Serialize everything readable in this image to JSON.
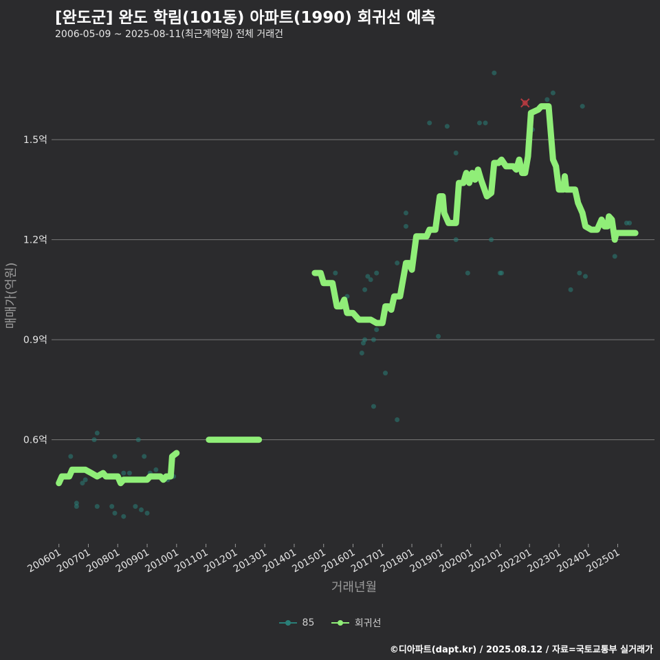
{
  "header": {
    "title": "[완도군] 완도 학림(101동) 아파트(1990) 회귀선 예측",
    "subtitle": "2006-05-09 ~ 2025-08-11(최근계약일) 전체 거래건"
  },
  "caption": "©디아파트(dapt.kr) / 2025.08.12 / 자료=국토교통부 실거래가",
  "legend": {
    "items": [
      {
        "label": "85",
        "color": "#2a7f78"
      },
      {
        "label": "회귀선",
        "color": "#90ee78"
      }
    ]
  },
  "colors": {
    "background": "#2b2b2d",
    "grid": "#7a7a7a",
    "points": "#2a7f78",
    "regression": "#90ee78",
    "highlight": "#b53a40"
  },
  "chart_data": {
    "type": "scatter",
    "xlabel": "거래년월",
    "ylabel": "매매가(억원)",
    "xlim": [
      2005.75,
      2026.25
    ],
    "ylim": [
      0.29,
      1.795
    ],
    "y_ticks": [
      {
        "value": 0.6,
        "label": "0.6억"
      },
      {
        "value": 0.9,
        "label": "0.9억"
      },
      {
        "value": 1.2,
        "label": "1.2억"
      },
      {
        "value": 1.5,
        "label": "1.5억"
      }
    ],
    "x_ticks": [
      {
        "value": 2006,
        "label": "200601"
      },
      {
        "value": 2007,
        "label": "200701"
      },
      {
        "value": 2008,
        "label": "200801"
      },
      {
        "value": 2009,
        "label": "200901"
      },
      {
        "value": 2010,
        "label": "201001"
      },
      {
        "value": 2011,
        "label": "201101"
      },
      {
        "value": 2012,
        "label": "201201"
      },
      {
        "value": 2013,
        "label": "201301"
      },
      {
        "value": 2014,
        "label": "201401"
      },
      {
        "value": 2015,
        "label": "201501"
      },
      {
        "value": 2016,
        "label": "201601"
      },
      {
        "value": 2017,
        "label": "201701"
      },
      {
        "value": 2018,
        "label": "201801"
      },
      {
        "value": 2019,
        "label": "201901"
      },
      {
        "value": 2020,
        "label": "202001"
      },
      {
        "value": 2021,
        "label": "202101"
      },
      {
        "value": 2022,
        "label": "202201"
      },
      {
        "value": 2023,
        "label": "202301"
      },
      {
        "value": 2024,
        "label": "202401"
      },
      {
        "value": 2025,
        "label": "202501"
      }
    ],
    "series": [
      {
        "name": "85",
        "points": [
          [
            2006.4,
            0.55
          ],
          [
            2006.6,
            0.41
          ],
          [
            2006.6,
            0.4
          ],
          [
            2006.8,
            0.47
          ],
          [
            2006.9,
            0.48
          ],
          [
            2007.2,
            0.6
          ],
          [
            2007.3,
            0.62
          ],
          [
            2007.3,
            0.4
          ],
          [
            2007.5,
            0.5
          ],
          [
            2007.8,
            0.4
          ],
          [
            2007.9,
            0.55
          ],
          [
            2007.9,
            0.38
          ],
          [
            2008.2,
            0.5
          ],
          [
            2008.2,
            0.37
          ],
          [
            2008.4,
            0.5
          ],
          [
            2008.6,
            0.4
          ],
          [
            2008.7,
            0.6
          ],
          [
            2008.8,
            0.39
          ],
          [
            2008.9,
            0.55
          ],
          [
            2009.0,
            0.38
          ],
          [
            2009.1,
            0.5
          ],
          [
            2009.3,
            0.51
          ],
          [
            2009.7,
            0.48
          ],
          [
            2009.9,
            0.49
          ],
          [
            2015.4,
            1.1
          ],
          [
            2015.8,
            1.03
          ],
          [
            2016.3,
            0.86
          ],
          [
            2016.35,
            0.89
          ],
          [
            2016.4,
            0.9
          ],
          [
            2016.4,
            1.05
          ],
          [
            2016.5,
            1.09
          ],
          [
            2016.6,
            1.08
          ],
          [
            2016.7,
            0.7
          ],
          [
            2016.7,
            0.9
          ],
          [
            2016.8,
            1.1
          ],
          [
            2016.8,
            0.93
          ],
          [
            2017.1,
            0.8
          ],
          [
            2017.5,
            0.66
          ],
          [
            2017.5,
            1.13
          ],
          [
            2017.8,
            1.28
          ],
          [
            2017.8,
            1.24
          ],
          [
            2018.6,
            1.55
          ],
          [
            2018.9,
            0.91
          ],
          [
            2019.2,
            1.54
          ],
          [
            2019.5,
            1.46
          ],
          [
            2019.5,
            1.2
          ],
          [
            2019.9,
            1.1
          ],
          [
            2020.3,
            1.55
          ],
          [
            2020.5,
            1.55
          ],
          [
            2020.7,
            1.2
          ],
          [
            2020.8,
            1.7
          ],
          [
            2021.0,
            1.1
          ],
          [
            2021.05,
            1.1
          ],
          [
            2022.1,
            1.53
          ],
          [
            2022.6,
            1.62
          ],
          [
            2022.8,
            1.64
          ],
          [
            2023.4,
            1.05
          ],
          [
            2023.7,
            1.1
          ],
          [
            2023.8,
            1.6
          ],
          [
            2023.9,
            1.09
          ],
          [
            2024.9,
            1.15
          ],
          [
            2025.3,
            1.25
          ],
          [
            2025.4,
            1.25
          ]
        ]
      },
      {
        "name": "회귀선",
        "segments": [
          [
            [
              2006.0,
              0.47
            ],
            [
              2006.1,
              0.49
            ],
            [
              2006.35,
              0.49
            ],
            [
              2006.45,
              0.51
            ],
            [
              2006.9,
              0.51
            ],
            [
              2007.1,
              0.5
            ],
            [
              2007.3,
              0.49
            ],
            [
              2007.5,
              0.5
            ],
            [
              2007.6,
              0.49
            ],
            [
              2008.0,
              0.49
            ],
            [
              2008.1,
              0.47
            ],
            [
              2008.2,
              0.48
            ],
            [
              2008.45,
              0.48
            ],
            [
              2008.6,
              0.48
            ],
            [
              2008.7,
              0.48
            ],
            [
              2009.0,
              0.48
            ],
            [
              2009.1,
              0.49
            ],
            [
              2009.3,
              0.49
            ],
            [
              2009.45,
              0.49
            ],
            [
              2009.55,
              0.48
            ],
            [
              2009.65,
              0.49
            ],
            [
              2009.8,
              0.49
            ],
            [
              2009.85,
              0.55
            ],
            [
              2010.0,
              0.56
            ]
          ],
          [
            [
              2011.1,
              0.6
            ],
            [
              2012.8,
              0.6
            ]
          ],
          [
            [
              2014.7,
              1.1
            ],
            [
              2014.9,
              1.1
            ],
            [
              2015.0,
              1.07
            ],
            [
              2015.3,
              1.07
            ],
            [
              2015.45,
              1.0
            ],
            [
              2015.6,
              1.0
            ],
            [
              2015.7,
              1.02
            ],
            [
              2015.8,
              0.98
            ],
            [
              2016.0,
              0.98
            ],
            [
              2016.2,
              0.96
            ],
            [
              2016.6,
              0.96
            ],
            [
              2016.8,
              0.95
            ],
            [
              2017.0,
              0.95
            ],
            [
              2017.1,
              1.0
            ],
            [
              2017.2,
              1.0
            ],
            [
              2017.3,
              0.99
            ],
            [
              2017.4,
              1.03
            ],
            [
              2017.6,
              1.03
            ],
            [
              2017.8,
              1.13
            ],
            [
              2017.9,
              1.13
            ],
            [
              2018.0,
              1.11
            ],
            [
              2018.15,
              1.21
            ],
            [
              2018.5,
              1.21
            ],
            [
              2018.6,
              1.23
            ],
            [
              2018.8,
              1.23
            ],
            [
              2018.95,
              1.33
            ],
            [
              2019.05,
              1.33
            ],
            [
              2019.1,
              1.28
            ],
            [
              2019.25,
              1.25
            ],
            [
              2019.5,
              1.25
            ],
            [
              2019.6,
              1.37
            ],
            [
              2019.75,
              1.37
            ],
            [
              2019.85,
              1.4
            ],
            [
              2019.95,
              1.37
            ],
            [
              2020.05,
              1.4
            ],
            [
              2020.15,
              1.38
            ],
            [
              2020.25,
              1.41
            ],
            [
              2020.35,
              1.38
            ],
            [
              2020.55,
              1.33
            ],
            [
              2020.7,
              1.34
            ],
            [
              2020.8,
              1.43
            ],
            [
              2020.95,
              1.43
            ],
            [
              2021.05,
              1.44
            ],
            [
              2021.2,
              1.42
            ],
            [
              2021.45,
              1.42
            ],
            [
              2021.55,
              1.41
            ],
            [
              2021.65,
              1.44
            ],
            [
              2021.75,
              1.4
            ],
            [
              2021.85,
              1.4
            ],
            [
              2021.95,
              1.45
            ],
            [
              2022.05,
              1.58
            ],
            [
              2022.3,
              1.59
            ],
            [
              2022.4,
              1.6
            ],
            [
              2022.65,
              1.6
            ],
            [
              2022.8,
              1.44
            ],
            [
              2022.9,
              1.42
            ],
            [
              2023.0,
              1.35
            ],
            [
              2023.15,
              1.35
            ],
            [
              2023.2,
              1.39
            ],
            [
              2023.25,
              1.35
            ],
            [
              2023.55,
              1.35
            ],
            [
              2023.65,
              1.31
            ],
            [
              2023.8,
              1.28
            ],
            [
              2023.9,
              1.24
            ],
            [
              2024.1,
              1.23
            ],
            [
              2024.3,
              1.23
            ],
            [
              2024.45,
              1.26
            ],
            [
              2024.55,
              1.24
            ],
            [
              2024.65,
              1.24
            ],
            [
              2024.7,
              1.27
            ],
            [
              2024.8,
              1.26
            ],
            [
              2024.9,
              1.2
            ],
            [
              2024.95,
              1.22
            ],
            [
              2025.6,
              1.22
            ]
          ]
        ]
      }
    ],
    "highlight_point": [
      2021.85,
      1.61
    ]
  }
}
